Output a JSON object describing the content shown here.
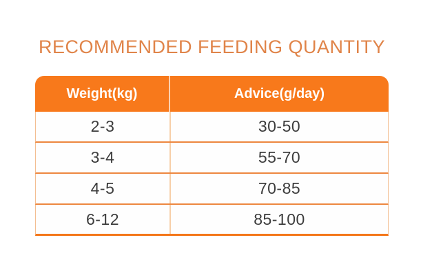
{
  "title": "RECOMMENDED FEEDING QUANTITY",
  "colors": {
    "title_text": "#E08449",
    "header_bg": "#F8791B",
    "header_text": "#FFFFFF",
    "row_text": "#3C3C3C",
    "row_bg": "#FEFEFE",
    "border_side": "#F3BE92",
    "row_divider": "#ED873F",
    "border_bottom": "#F4771A",
    "body_col_divider": "#F7CFA9"
  },
  "table": {
    "columns": [
      "Weight(kg)",
      "Advice(g/day)"
    ],
    "rows": [
      [
        "2-3",
        "30-50"
      ],
      [
        "3-4",
        "55-70"
      ],
      [
        "4-5",
        "70-85"
      ],
      [
        "6-12",
        "85-100"
      ]
    ]
  },
  "chart_data": {
    "type": "table",
    "title": "RECOMMENDED FEEDING QUANTITY",
    "columns": [
      "Weight(kg)",
      "Advice(g/day)"
    ],
    "rows": [
      [
        "2-3",
        "30-50"
      ],
      [
        "3-4",
        "55-70"
      ],
      [
        "4-5",
        "70-85"
      ],
      [
        "6-12",
        "85-100"
      ]
    ]
  }
}
